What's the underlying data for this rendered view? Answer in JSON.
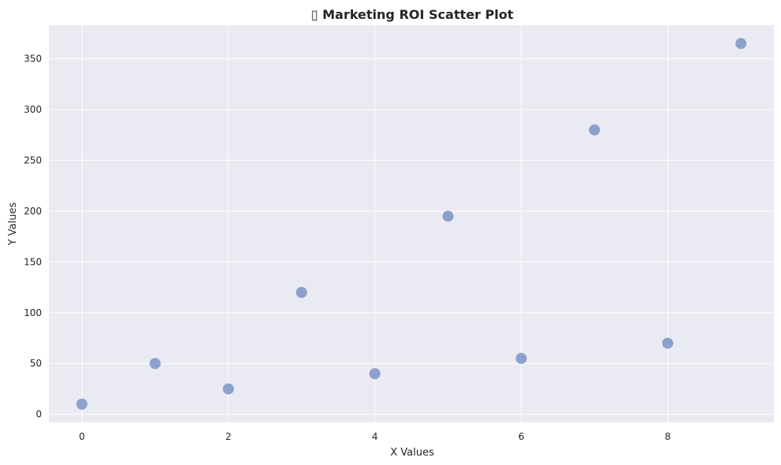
{
  "chart_data": {
    "type": "scatter",
    "title": "▯ Marketing ROI Scatter Plot",
    "xlabel": "X Values",
    "ylabel": "Y Values",
    "x": [
      0,
      1,
      2,
      3,
      4,
      5,
      6,
      7,
      8,
      9
    ],
    "y": [
      10,
      50,
      25,
      120,
      40,
      195,
      55,
      280,
      70,
      365
    ],
    "xlim": [
      -0.45,
      9.45
    ],
    "ylim": [
      -8,
      383
    ],
    "xticks": [
      0,
      2,
      4,
      6,
      8
    ],
    "yticks": [
      0,
      50,
      100,
      150,
      200,
      250,
      300,
      350
    ],
    "grid": true,
    "colors": {
      "plot_background": "#eaeaf2",
      "grid": "#ffffff",
      "point": "#7b93c6"
    }
  }
}
